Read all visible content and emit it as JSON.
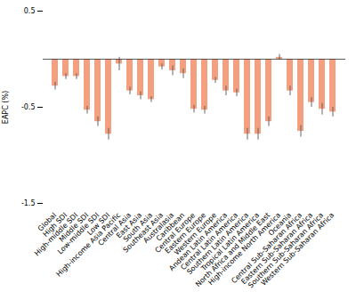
{
  "chart_data": {
    "type": "bar",
    "ylabel": "EAPC (%)",
    "categories": [
      "Global",
      "High SDI",
      "High-middle SDI",
      "Middle SDI",
      "Low-middle SDI",
      "Low SDI",
      "High-income Asia Pacific",
      "Central Asia",
      "East Asia",
      "South Asia",
      "Southeast Asia",
      "Australasia",
      "Caribbean",
      "Central Europe",
      "Eastern Europe",
      "Western Europe",
      "Andean Latin America",
      "Central Latin America",
      "Southern Latin America",
      "Tropical Latin America",
      "North Africa and Middle East",
      "High-income North America",
      "Oceania",
      "Central Sub-Saharan Africa",
      "Eastern Sub-Saharan Africa",
      "Southern Sub-Saharan Africa",
      "Western Sub-Saharan Africa"
    ],
    "values": [
      -0.28,
      -0.18,
      -0.18,
      -0.53,
      -0.65,
      -0.78,
      -0.05,
      -0.33,
      -0.38,
      -0.42,
      -0.08,
      -0.12,
      -0.15,
      -0.52,
      -0.53,
      -0.22,
      -0.33,
      -0.35,
      -0.78,
      -0.78,
      -0.65,
      0.02,
      -0.33,
      -0.75,
      -0.45,
      -0.52,
      -0.55
    ],
    "yerr_lower": [
      0.04,
      0.03,
      0.03,
      0.04,
      0.05,
      0.06,
      0.07,
      0.04,
      0.04,
      0.03,
      0.03,
      0.05,
      0.05,
      0.04,
      0.04,
      0.03,
      0.05,
      0.04,
      0.06,
      0.06,
      0.05,
      0.03,
      0.05,
      0.06,
      0.05,
      0.06,
      0.05
    ],
    "yerr_upper": [
      0.04,
      0.03,
      0.03,
      0.04,
      0.05,
      0.06,
      0.07,
      0.04,
      0.04,
      0.03,
      0.03,
      0.05,
      0.05,
      0.04,
      0.04,
      0.03,
      0.05,
      0.04,
      0.06,
      0.06,
      0.05,
      0.03,
      0.05,
      0.06,
      0.05,
      0.06,
      0.05
    ],
    "color": "#F4A080",
    "ylim": [
      -1.5,
      0.5
    ],
    "yticks": [
      0.5,
      -0.5,
      -1.5
    ],
    "grid": false
  }
}
